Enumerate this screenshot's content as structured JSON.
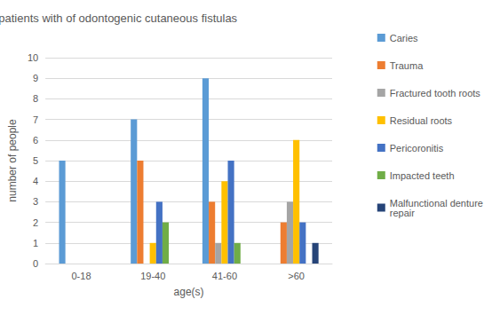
{
  "chart_data": {
    "type": "bar",
    "title": "Etiology and age distribution of patients with of odontogenic cutaneous fistulas",
    "x_label": "age(s)",
    "y_label": "number of people",
    "categories": [
      "0-18",
      "19-40",
      "41-60",
      ">60"
    ],
    "series": [
      {
        "name": "Caries",
        "color": "#5b9bd5",
        "values": [
          5,
          7,
          9,
          0
        ]
      },
      {
        "name": "Trauma",
        "color": "#ed7d31",
        "values": [
          0,
          5,
          3,
          2
        ]
      },
      {
        "name": "Fractured tooth roots",
        "color": "#a5a5a5",
        "values": [
          0,
          0,
          1,
          3
        ]
      },
      {
        "name": "Residual roots",
        "color": "#ffc000",
        "values": [
          0,
          1,
          4,
          6
        ]
      },
      {
        "name": "Pericoronitis",
        "color": "#4472c4",
        "values": [
          0,
          3,
          5,
          2
        ]
      },
      {
        "name": "Impacted teeth",
        "color": "#70ad47",
        "values": [
          0,
          2,
          1,
          0
        ]
      },
      {
        "name": "Malfunctional denture repair",
        "color": "#264478",
        "values": [
          0,
          0,
          0,
          1
        ]
      }
    ],
    "ylim": [
      0,
      10
    ],
    "yticks": [
      0,
      1,
      2,
      3,
      4,
      5,
      6,
      7,
      8,
      9,
      10
    ],
    "grid": true,
    "legend": "right"
  }
}
